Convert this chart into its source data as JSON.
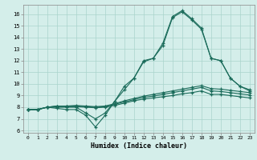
{
  "background_color": "#d4eeea",
  "grid_color": "#aad4cc",
  "line_color": "#1a6b5a",
  "x_ticks": [
    0,
    1,
    2,
    3,
    4,
    5,
    6,
    7,
    8,
    9,
    10,
    11,
    12,
    13,
    14,
    15,
    16,
    17,
    18,
    19,
    20,
    21,
    22,
    23
  ],
  "y_ticks": [
    6,
    7,
    8,
    9,
    10,
    11,
    12,
    13,
    14,
    15,
    16
  ],
  "xlabel": "Humidex (Indice chaleur)",
  "ylim": [
    5.8,
    16.8
  ],
  "xlim": [
    -0.5,
    23.5
  ],
  "line_main": [
    7.8,
    7.8,
    8.0,
    8.0,
    8.0,
    8.0,
    7.5,
    7.0,
    7.5,
    8.5,
    9.5,
    10.5,
    12.0,
    12.2,
    13.3,
    15.7,
    16.2,
    15.5,
    14.7,
    12.2,
    12.0,
    10.5,
    9.8,
    9.5
  ],
  "line_main2": [
    7.8,
    7.8,
    8.0,
    7.9,
    7.8,
    7.8,
    7.3,
    6.3,
    7.3,
    8.5,
    9.8,
    10.5,
    11.9,
    12.2,
    13.5,
    15.8,
    16.3,
    15.6,
    14.8,
    12.2,
    12.0,
    10.5,
    9.8,
    9.4
  ],
  "line_flat1": [
    7.8,
    7.8,
    8.0,
    8.1,
    8.1,
    8.15,
    8.1,
    8.05,
    8.1,
    8.3,
    8.55,
    8.75,
    8.95,
    9.1,
    9.25,
    9.4,
    9.55,
    9.7,
    9.85,
    9.6,
    9.55,
    9.45,
    9.35,
    9.25
  ],
  "line_flat2": [
    7.8,
    7.8,
    8.0,
    8.1,
    8.1,
    8.1,
    8.05,
    8.0,
    8.05,
    8.25,
    8.45,
    8.65,
    8.85,
    8.95,
    9.1,
    9.25,
    9.4,
    9.55,
    9.7,
    9.4,
    9.35,
    9.25,
    9.15,
    9.05
  ],
  "line_flat3": [
    7.8,
    7.8,
    8.0,
    8.05,
    8.05,
    8.05,
    8.0,
    7.95,
    8.0,
    8.15,
    8.35,
    8.55,
    8.7,
    8.8,
    8.9,
    9.0,
    9.15,
    9.25,
    9.4,
    9.1,
    9.1,
    9.0,
    8.9,
    8.8
  ]
}
